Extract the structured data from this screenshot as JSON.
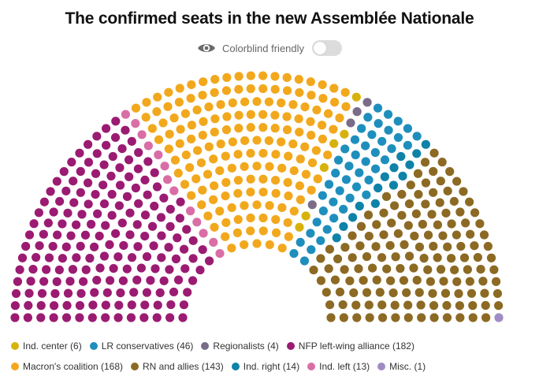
{
  "title": "The confirmed seats in the new Assemblée Nationale",
  "colorblind": {
    "label": "Colorblind friendly",
    "enabled": false,
    "icon": "eye-icon"
  },
  "chart_data": {
    "type": "hemicycle",
    "total_seats": 577,
    "parties": [
      {
        "key": "nfp",
        "name": "NFP left-wing alliance",
        "seats": 182,
        "color": "#9b1b72"
      },
      {
        "key": "ind_left",
        "name": "Ind. left",
        "seats": 13,
        "color": "#d96ea6"
      },
      {
        "key": "macron",
        "name": "Macron's coalition",
        "seats": 168,
        "color": "#f2a81d"
      },
      {
        "key": "ind_center",
        "name": "Ind. center",
        "seats": 6,
        "color": "#d8b20c"
      },
      {
        "key": "regionalists",
        "name": "Regionalists",
        "seats": 4,
        "color": "#7a6c88"
      },
      {
        "key": "lr",
        "name": "LR conservatives",
        "seats": 46,
        "color": "#1e8fbd"
      },
      {
        "key": "ind_right",
        "name": "Ind. right",
        "seats": 14,
        "color": "#0f82a8"
      },
      {
        "key": "rn",
        "name": "RN and allies",
        "seats": 143,
        "color": "#8c6a24"
      },
      {
        "key": "misc",
        "name": "Misc.",
        "seats": 1,
        "color": "#a08cc4"
      }
    ]
  },
  "legend": [
    {
      "label": "Ind. center (6)",
      "color": "#d8b20c"
    },
    {
      "label": "LR conservatives (46)",
      "color": "#1e8fbd"
    },
    {
      "label": "Regionalists (4)",
      "color": "#7a6c88"
    },
    {
      "label": "NFP left-wing alliance (182)",
      "color": "#9b1b72"
    },
    {
      "label": "Macron's coalition (168)",
      "color": "#f2a81d"
    },
    {
      "label": "RN and allies (143)",
      "color": "#8c6a24"
    },
    {
      "label": "Ind. right (14)",
      "color": "#0f82a8"
    },
    {
      "label": "Ind. left (13)",
      "color": "#d96ea6"
    },
    {
      "label": "Misc. (1)",
      "color": "#a08cc4"
    }
  ]
}
